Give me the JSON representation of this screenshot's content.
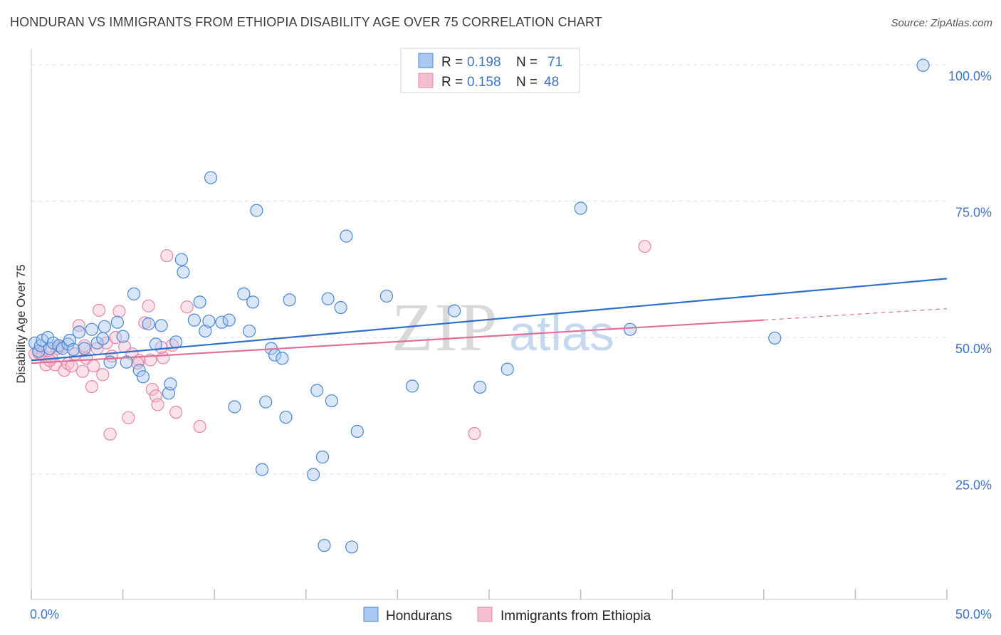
{
  "title": "HONDURAN VS IMMIGRANTS FROM ETHIOPIA DISABILITY AGE OVER 75 CORRELATION CHART",
  "source": "Source: ZipAtlas.com",
  "watermark": {
    "zip": "ZIP",
    "atlas": "atlas"
  },
  "colors": {
    "blue_fill": "#a9c8f0",
    "blue_stroke": "#4a86d4",
    "blue_line": "#2f6fcc",
    "pink_fill": "#f6bcd0",
    "pink_stroke": "#e387a8",
    "pink_line": "#e0709a",
    "grid": "#dddddd",
    "tick_label": "#3f74c4"
  },
  "legend": {
    "r_label": "R =",
    "n_label": "N =",
    "items": [
      {
        "r": "0.198",
        "n": "71"
      },
      {
        "r": "0.158",
        "n": "48"
      }
    ]
  },
  "chart_data": {
    "type": "scatter",
    "title": "HONDURAN VS IMMIGRANTS FROM ETHIOPIA DISABILITY AGE OVER 75 CORRELATION CHART",
    "xlabel": "",
    "ylabel": "Disability Age Over 75",
    "xlim": [
      0,
      50
    ],
    "ylim": [
      2,
      103
    ],
    "x_tick_labels": [
      "0.0%",
      "50.0%"
    ],
    "y_ticks": [
      25,
      50,
      75,
      100
    ],
    "y_tick_labels": [
      "25.0%",
      "50.0%",
      "75.0%",
      "100.0%"
    ],
    "grid": true,
    "legend_position": "top-center",
    "series": [
      {
        "name": "Hondurans",
        "color": "#4a86d4",
        "trend": {
          "x": [
            0,
            50
          ],
          "y": [
            45.8,
            60.8
          ]
        },
        "points": [
          [
            0.2,
            49.0
          ],
          [
            0.4,
            47.5
          ],
          [
            0.5,
            48.5
          ],
          [
            0.6,
            49.5
          ],
          [
            0.9,
            50.0
          ],
          [
            1.0,
            48.0
          ],
          [
            1.2,
            49.0
          ],
          [
            1.5,
            48.5
          ],
          [
            1.7,
            48.0
          ],
          [
            2.0,
            48.8
          ],
          [
            2.1,
            49.5
          ],
          [
            2.3,
            47.8
          ],
          [
            2.6,
            51.0
          ],
          [
            2.9,
            48.0
          ],
          [
            3.3,
            51.5
          ],
          [
            3.6,
            49.0
          ],
          [
            3.9,
            49.8
          ],
          [
            4.0,
            52.0
          ],
          [
            4.3,
            45.5
          ],
          [
            4.7,
            52.8
          ],
          [
            5.0,
            50.2
          ],
          [
            5.2,
            45.5
          ],
          [
            5.6,
            58.0
          ],
          [
            5.9,
            44.0
          ],
          [
            6.1,
            42.8
          ],
          [
            6.4,
            52.5
          ],
          [
            6.8,
            48.8
          ],
          [
            7.1,
            52.2
          ],
          [
            7.5,
            39.8
          ],
          [
            7.6,
            41.5
          ],
          [
            7.9,
            49.2
          ],
          [
            8.2,
            64.3
          ],
          [
            8.3,
            62.0
          ],
          [
            8.9,
            53.2
          ],
          [
            9.2,
            56.5
          ],
          [
            9.5,
            51.2
          ],
          [
            9.7,
            53.0
          ],
          [
            9.8,
            79.3
          ],
          [
            10.4,
            52.8
          ],
          [
            10.8,
            53.2
          ],
          [
            11.1,
            37.3
          ],
          [
            11.6,
            58.0
          ],
          [
            11.9,
            51.2
          ],
          [
            12.1,
            56.5
          ],
          [
            12.3,
            73.3
          ],
          [
            12.6,
            25.8
          ],
          [
            12.8,
            38.2
          ],
          [
            13.1,
            48.0
          ],
          [
            13.3,
            46.8
          ],
          [
            13.7,
            46.2
          ],
          [
            13.9,
            35.4
          ],
          [
            14.1,
            56.9
          ],
          [
            15.6,
            40.3
          ],
          [
            15.9,
            28.1
          ],
          [
            16.0,
            11.9
          ],
          [
            16.2,
            57.1
          ],
          [
            16.4,
            38.4
          ],
          [
            17.2,
            68.6
          ],
          [
            17.5,
            11.6
          ],
          [
            17.8,
            32.8
          ],
          [
            16.9,
            55.5
          ],
          [
            19.4,
            57.6
          ],
          [
            20.8,
            41.1
          ],
          [
            23.1,
            54.9
          ],
          [
            24.5,
            40.9
          ],
          [
            26.0,
            44.2
          ],
          [
            30.0,
            73.7
          ],
          [
            32.7,
            51.5
          ],
          [
            40.6,
            49.9
          ],
          [
            48.7,
            99.9
          ],
          [
            15.4,
            24.9
          ]
        ]
      },
      {
        "name": "Immigrants from Ethiopia",
        "color": "#e387a8",
        "trend": {
          "x": [
            0,
            40
          ],
          "y": [
            45.3,
            53.2
          ]
        },
        "trend_dashed": {
          "x": [
            40,
            50
          ],
          "y": [
            53.2,
            55.3
          ]
        },
        "points": [
          [
            0.2,
            47.0
          ],
          [
            0.4,
            47.2
          ],
          [
            0.6,
            46.8
          ],
          [
            0.8,
            45.0
          ],
          [
            1.1,
            46.3
          ],
          [
            1.3,
            45.0
          ],
          [
            1.6,
            48.2
          ],
          [
            1.8,
            44.0
          ],
          [
            2.0,
            45.2
          ],
          [
            2.2,
            44.8
          ],
          [
            2.6,
            52.2
          ],
          [
            2.9,
            48.5
          ],
          [
            3.0,
            46.2
          ],
          [
            3.3,
            41.0
          ],
          [
            3.6,
            48.0
          ],
          [
            3.7,
            55.0
          ],
          [
            3.9,
            43.2
          ],
          [
            4.1,
            49.0
          ],
          [
            4.3,
            32.3
          ],
          [
            4.6,
            50.0
          ],
          [
            4.8,
            54.8
          ],
          [
            5.1,
            48.3
          ],
          [
            5.3,
            35.3
          ],
          [
            5.5,
            47.0
          ],
          [
            5.9,
            45.8
          ],
          [
            6.2,
            52.7
          ],
          [
            6.4,
            55.8
          ],
          [
            6.6,
            40.5
          ],
          [
            6.8,
            39.3
          ],
          [
            6.9,
            37.7
          ],
          [
            7.2,
            46.3
          ],
          [
            7.4,
            65.0
          ],
          [
            7.7,
            48.6
          ],
          [
            7.9,
            36.3
          ],
          [
            8.5,
            55.6
          ],
          [
            9.2,
            33.7
          ],
          [
            1.4,
            48.0
          ],
          [
            2.4,
            47.0
          ],
          [
            5.8,
            45.3
          ],
          [
            3.4,
            44.8
          ],
          [
            1.0,
            45.8
          ],
          [
            0.9,
            47.6
          ],
          [
            7.1,
            48.2
          ],
          [
            4.4,
            46.6
          ],
          [
            24.2,
            32.4
          ],
          [
            33.5,
            66.7
          ],
          [
            6.5,
            45.9
          ],
          [
            2.8,
            43.8
          ]
        ]
      }
    ]
  }
}
